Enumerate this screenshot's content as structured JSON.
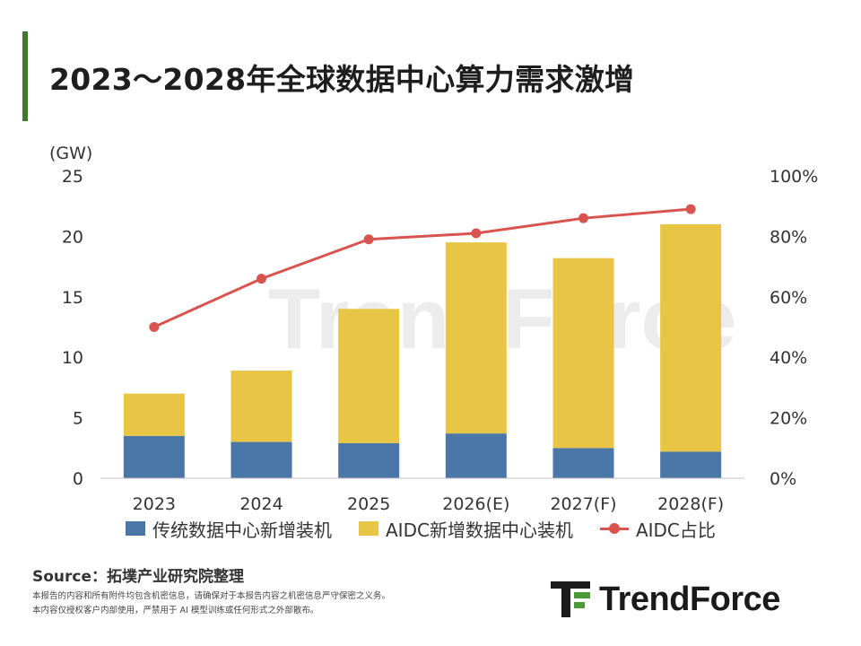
{
  "header": {
    "title": "2023～2028年全球数据中心算力需求激增"
  },
  "colors": {
    "accent": "#3e7a2a",
    "traditional": "#4a76a8",
    "aidc": "#e9c546",
    "ratio": "#d9534f",
    "logo_green": "#4a9a3a",
    "watermark": "#ececec"
  },
  "chart_data": {
    "type": "bar",
    "stacked": true,
    "unit_label": "(GW)",
    "categories": [
      "2023",
      "2024",
      "2025",
      "2026(E)",
      "2027(F)",
      "2028(F)"
    ],
    "series": [
      {
        "name": "传统数据中心新增装机",
        "values": [
          3.5,
          3.0,
          2.9,
          3.7,
          2.5,
          2.2
        ],
        "axis": "left"
      },
      {
        "name": "AIDC新增数据中心装机",
        "values": [
          3.5,
          5.9,
          11.1,
          15.8,
          15.7,
          18.8
        ],
        "axis": "left"
      }
    ],
    "line_series": {
      "name": "AIDC占比",
      "values": [
        0.5,
        0.66,
        0.79,
        0.81,
        0.86,
        0.89
      ],
      "axis": "right"
    },
    "y_left": {
      "min": 0,
      "max": 25,
      "ticks": [
        "0",
        "5",
        "10",
        "15",
        "20",
        "25"
      ]
    },
    "y_right": {
      "min": 0,
      "max": 1,
      "ticks": [
        "0%",
        "20%",
        "40%",
        "60%",
        "80%",
        "100%"
      ]
    },
    "legend_position": "bottom",
    "grid": false
  },
  "watermark": {
    "text": "TrendForce"
  },
  "footer": {
    "source": "Source：拓墣产业研究院整理",
    "disclaimer_line1": "本报告的内容和所有附件均包含机密信息，请确保对于本报告内容之机密信息严守保密之义务。",
    "disclaimer_line2": "本内容仅授权客户内部使用，严禁用于 AI 模型训练或任何形式之外部散布。"
  },
  "logo": {
    "text": "TrendForce"
  }
}
